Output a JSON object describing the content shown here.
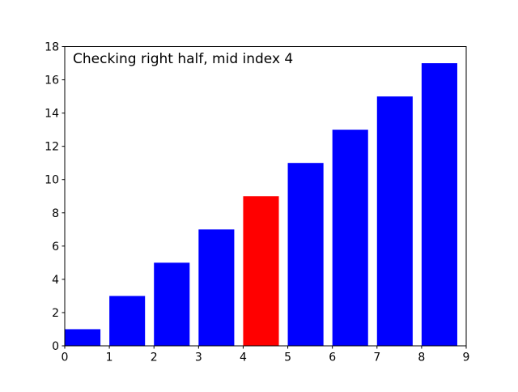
{
  "chart_data": {
    "type": "bar",
    "title": "Checking right half, mid index 4",
    "categories": [
      0,
      1,
      2,
      3,
      4,
      5,
      6,
      7,
      8
    ],
    "values": [
      1,
      3,
      5,
      7,
      9,
      11,
      13,
      15,
      17
    ],
    "bar_colors": [
      "#0000ff",
      "#0000ff",
      "#0000ff",
      "#0000ff",
      "#ff0000",
      "#0000ff",
      "#0000ff",
      "#0000ff",
      "#0000ff"
    ],
    "default_bar_color": "#0000ff",
    "highlight_color": "#ff0000",
    "highlight_index": 4,
    "bar_width": 0.8,
    "xlabel": "",
    "ylabel": "",
    "xlim": [
      0,
      9
    ],
    "ylim": [
      0,
      18
    ],
    "x_ticks": [
      "0",
      "1",
      "2",
      "3",
      "4",
      "5",
      "6",
      "7",
      "8",
      "9"
    ],
    "y_ticks": [
      "0",
      "2",
      "4",
      "6",
      "8",
      "10",
      "12",
      "14",
      "16",
      "18"
    ],
    "grid": false,
    "legend_position": "none",
    "axis_color": "#000000",
    "background_color": "#ffffff"
  }
}
